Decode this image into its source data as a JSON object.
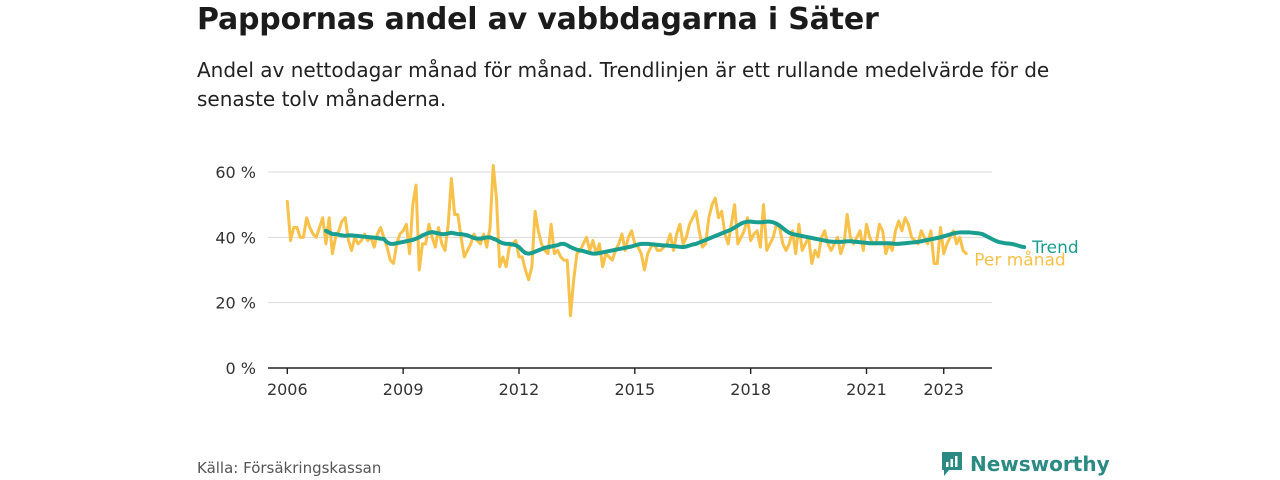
{
  "title": "Pappornas andel av vabbdagarna i Säter",
  "subtitle": "Andel av nettodagar månad för månad. Trendlinjen är ett rullande medelvärde för de senaste tolv månaderna.",
  "source": "Källa: Försäkringskassan",
  "brand": "Newsworthy",
  "colors": {
    "trend": "#1a9e8f",
    "monthly": "#f7c14a",
    "grid": "#d9d9d9",
    "axis": "#222222"
  },
  "chart_data": {
    "type": "line",
    "x_unit": "year",
    "xlim": [
      2005.5,
      2024.25
    ],
    "ylim": [
      0,
      60
    ],
    "y_ticks": [
      0,
      20,
      40,
      60
    ],
    "y_tick_labels": [
      "0 %",
      "20 %",
      "40 %",
      "60 %"
    ],
    "x_ticks": [
      2006,
      2009,
      2012,
      2015,
      2018,
      2021,
      2023
    ],
    "x_tick_labels": [
      "2006",
      "2009",
      "2012",
      "2015",
      "2018",
      "2021",
      "2023"
    ],
    "grid": true,
    "series": [
      {
        "name": "Per månad",
        "x_start": 2006.0,
        "x_step": 0.0833333,
        "values": [
          51,
          39,
          43,
          43,
          40,
          40,
          46,
          43,
          41,
          40,
          43,
          46,
          38,
          46,
          35,
          40,
          42,
          45,
          46,
          39,
          36,
          40,
          38,
          39,
          41,
          39,
          40,
          37,
          41,
          43,
          40,
          37,
          33,
          32,
          38,
          41,
          42,
          44,
          35,
          50,
          56,
          30,
          38,
          38,
          44,
          40,
          37,
          43,
          38,
          36,
          44,
          58,
          47,
          47,
          40,
          34,
          36,
          38,
          41,
          39,
          38,
          41,
          37,
          43,
          62,
          52,
          31,
          34,
          31,
          37,
          38,
          39,
          34,
          34,
          30,
          27,
          31,
          48,
          42,
          38,
          36,
          35,
          44,
          35,
          36,
          34,
          33,
          33,
          16,
          27,
          35,
          36,
          38,
          40,
          36,
          39,
          35,
          38,
          31,
          35,
          34,
          33,
          36,
          38,
          41,
          36,
          40,
          42,
          38,
          37,
          35,
          30,
          35,
          37,
          38,
          36,
          36,
          37,
          38,
          41,
          36,
          41,
          44,
          38,
          40,
          44,
          46,
          48,
          42,
          37,
          38,
          46,
          50,
          52,
          46,
          48,
          41,
          38,
          44,
          50,
          38,
          40,
          42,
          46,
          39,
          41,
          42,
          37,
          50,
          36,
          38,
          40,
          44,
          43,
          38,
          36,
          38,
          42,
          35,
          44,
          36,
          38,
          40,
          32,
          36,
          34,
          40,
          42,
          38,
          36,
          38,
          40,
          35,
          38,
          47,
          40,
          38,
          40,
          42,
          36,
          44,
          40,
          38,
          38,
          44,
          42,
          35,
          38,
          36,
          42,
          45,
          42,
          46,
          44,
          40,
          39,
          38,
          42,
          40,
          38,
          42,
          32,
          32,
          43,
          35,
          38,
          40,
          42,
          38,
          40,
          36,
          35
        ]
      },
      {
        "name": "Trend",
        "x_start": 2007.0,
        "x_step": 0.0833333,
        "values": [
          42,
          41.5,
          41,
          41,
          40.8,
          40.6,
          40.5,
          40.6,
          40.6,
          40.5,
          40.4,
          40.3,
          40.2,
          40.1,
          40,
          39.9,
          39.8,
          39.6,
          39.5,
          38.5,
          38,
          38,
          38.2,
          38.4,
          38.6,
          38.8,
          39,
          39.2,
          39.6,
          40,
          40.6,
          41,
          41.4,
          41.6,
          41.4,
          41.2,
          41,
          41,
          41.2,
          41.4,
          41.2,
          41,
          41,
          40.8,
          40.6,
          40.2,
          39.8,
          39.6,
          39.6,
          39.8,
          40,
          40,
          39.6,
          39.2,
          38.6,
          38.2,
          38,
          38,
          37.8,
          37.6,
          37,
          36,
          35.2,
          35,
          35.2,
          35.6,
          36,
          36.4,
          36.8,
          37,
          37.2,
          37.4,
          37.6,
          38,
          38,
          37.6,
          37,
          36.6,
          36.2,
          36,
          35.8,
          35.5,
          35.2,
          35,
          35,
          35.2,
          35.4,
          35.6,
          35.8,
          36,
          36.2,
          36.4,
          36.6,
          36.8,
          37,
          37.2,
          37.5,
          37.8,
          38,
          38,
          38,
          37.9,
          37.8,
          37.7,
          37.6,
          37.5,
          37.5,
          37.4,
          37.3,
          37.2,
          37.1,
          37,
          37.2,
          37.5,
          37.8,
          38,
          38.4,
          38.8,
          39.2,
          39.6,
          40,
          40.4,
          40.8,
          41.2,
          41.6,
          42,
          42.4,
          43,
          43.6,
          44.2,
          44.6,
          44.8,
          44.8,
          44.7,
          44.6,
          44.6,
          44.7,
          44.8,
          44.8,
          44.6,
          44.2,
          43.6,
          42.8,
          42,
          41.4,
          41,
          40.8,
          40.6,
          40.4,
          40.2,
          40,
          39.8,
          39.6,
          39.4,
          39.2,
          39,
          38.8,
          38.7,
          38.6,
          38.6,
          38.6,
          38.7,
          38.8,
          38.8,
          38.7,
          38.6,
          38.5,
          38.4,
          38.3,
          38.2,
          38.2,
          38.2,
          38.2,
          38.2,
          38.2,
          38.2,
          38.1,
          38,
          38,
          38.1,
          38.2,
          38.3,
          38.4,
          38.5,
          38.6,
          38.8,
          39,
          39.2,
          39.4,
          39.6,
          39.8,
          40,
          40.3,
          40.6,
          40.9,
          41.2,
          41.4,
          41.5,
          41.5,
          41.5,
          41.5,
          41.4,
          41.3,
          41.2,
          41,
          40.5,
          40,
          39.5,
          39,
          38.6,
          38.4,
          38.2,
          38.1,
          38,
          37.8,
          37.5,
          37.2,
          37
        ]
      }
    ]
  }
}
